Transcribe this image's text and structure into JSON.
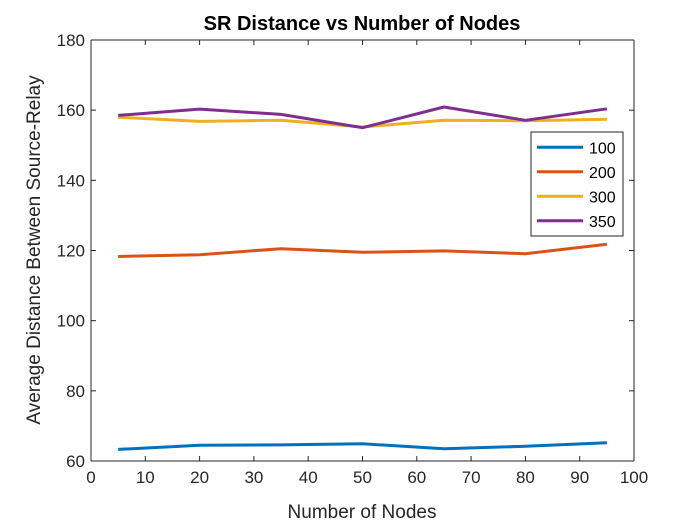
{
  "chart_data": {
    "type": "line",
    "title": "SR Distance vs Number of Nodes",
    "xlabel": "Number of Nodes",
    "ylabel": "Average Distance Between Source-Relay",
    "xlim": [
      0,
      100
    ],
    "ylim": [
      60,
      180
    ],
    "xticks": [
      "0",
      "10",
      "20",
      "30",
      "40",
      "50",
      "60",
      "70",
      "80",
      "90",
      "100"
    ],
    "yticks": [
      "60",
      "80",
      "100",
      "120",
      "140",
      "160",
      "180"
    ],
    "x": [
      5,
      20,
      35,
      50,
      65,
      80,
      95
    ],
    "grid": false,
    "legend_position": "right",
    "series": [
      {
        "name": "100",
        "color": "#0072BD",
        "values": [
          63.3,
          64.5,
          64.6,
          64.9,
          63.5,
          64.2,
          65.2
        ]
      },
      {
        "name": "200",
        "color": "#D95319",
        "values": [
          118.3,
          118.8,
          120.5,
          119.5,
          119.9,
          119.1,
          121.8
        ]
      },
      {
        "name": "300",
        "color": "#EDB120",
        "values": [
          158.0,
          156.8,
          157.1,
          155.2,
          157.1,
          157.0,
          157.4
        ]
      },
      {
        "name": "350",
        "color": "#7E2F8E",
        "values": [
          158.5,
          160.3,
          158.8,
          155.0,
          160.9,
          157.1,
          160.4
        ]
      }
    ]
  }
}
